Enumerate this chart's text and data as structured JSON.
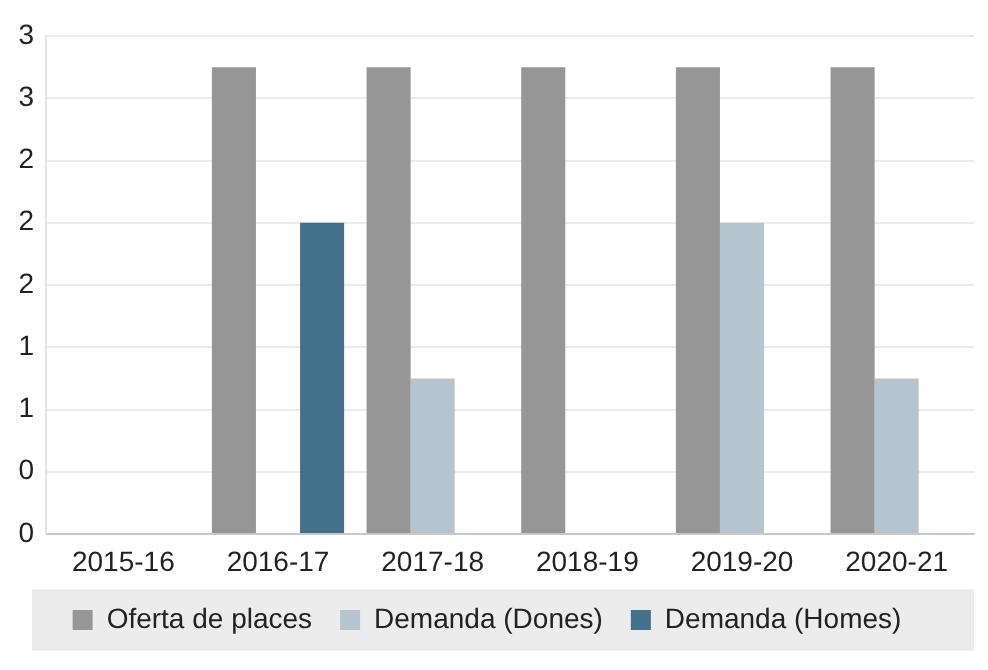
{
  "chart_data": {
    "type": "bar",
    "categories": [
      "2015-16",
      "2016-17",
      "2017-18",
      "2018-19",
      "2019-20",
      "2020-21"
    ],
    "series": [
      {
        "name": "Oferta de places",
        "color": "#969696",
        "values": [
          null,
          3,
          3,
          3,
          3,
          3
        ]
      },
      {
        "name": "Demanda (Dones)",
        "color": "#b5c5cf",
        "values": [
          null,
          null,
          1,
          null,
          2,
          1
        ]
      },
      {
        "name": "Demanda (Homes)",
        "color": "#42728b",
        "values": [
          null,
          2,
          null,
          null,
          null,
          null
        ]
      }
    ],
    "ylim": [
      0,
      3.2
    ],
    "yticks": [
      0,
      {
        "value": 0.4,
        "label": "0"
      },
      {
        "value": 0.8,
        "label": "1"
      },
      {
        "value": 1.2,
        "label": "1"
      },
      {
        "value": 1.6,
        "label": "2"
      },
      2,
      {
        "value": 2.4,
        "label": "2"
      },
      {
        "value": 2.8,
        "label": "3"
      },
      {
        "value": 3.2,
        "label": "3"
      }
    ],
    "grid": "y",
    "legend": "bottom"
  }
}
